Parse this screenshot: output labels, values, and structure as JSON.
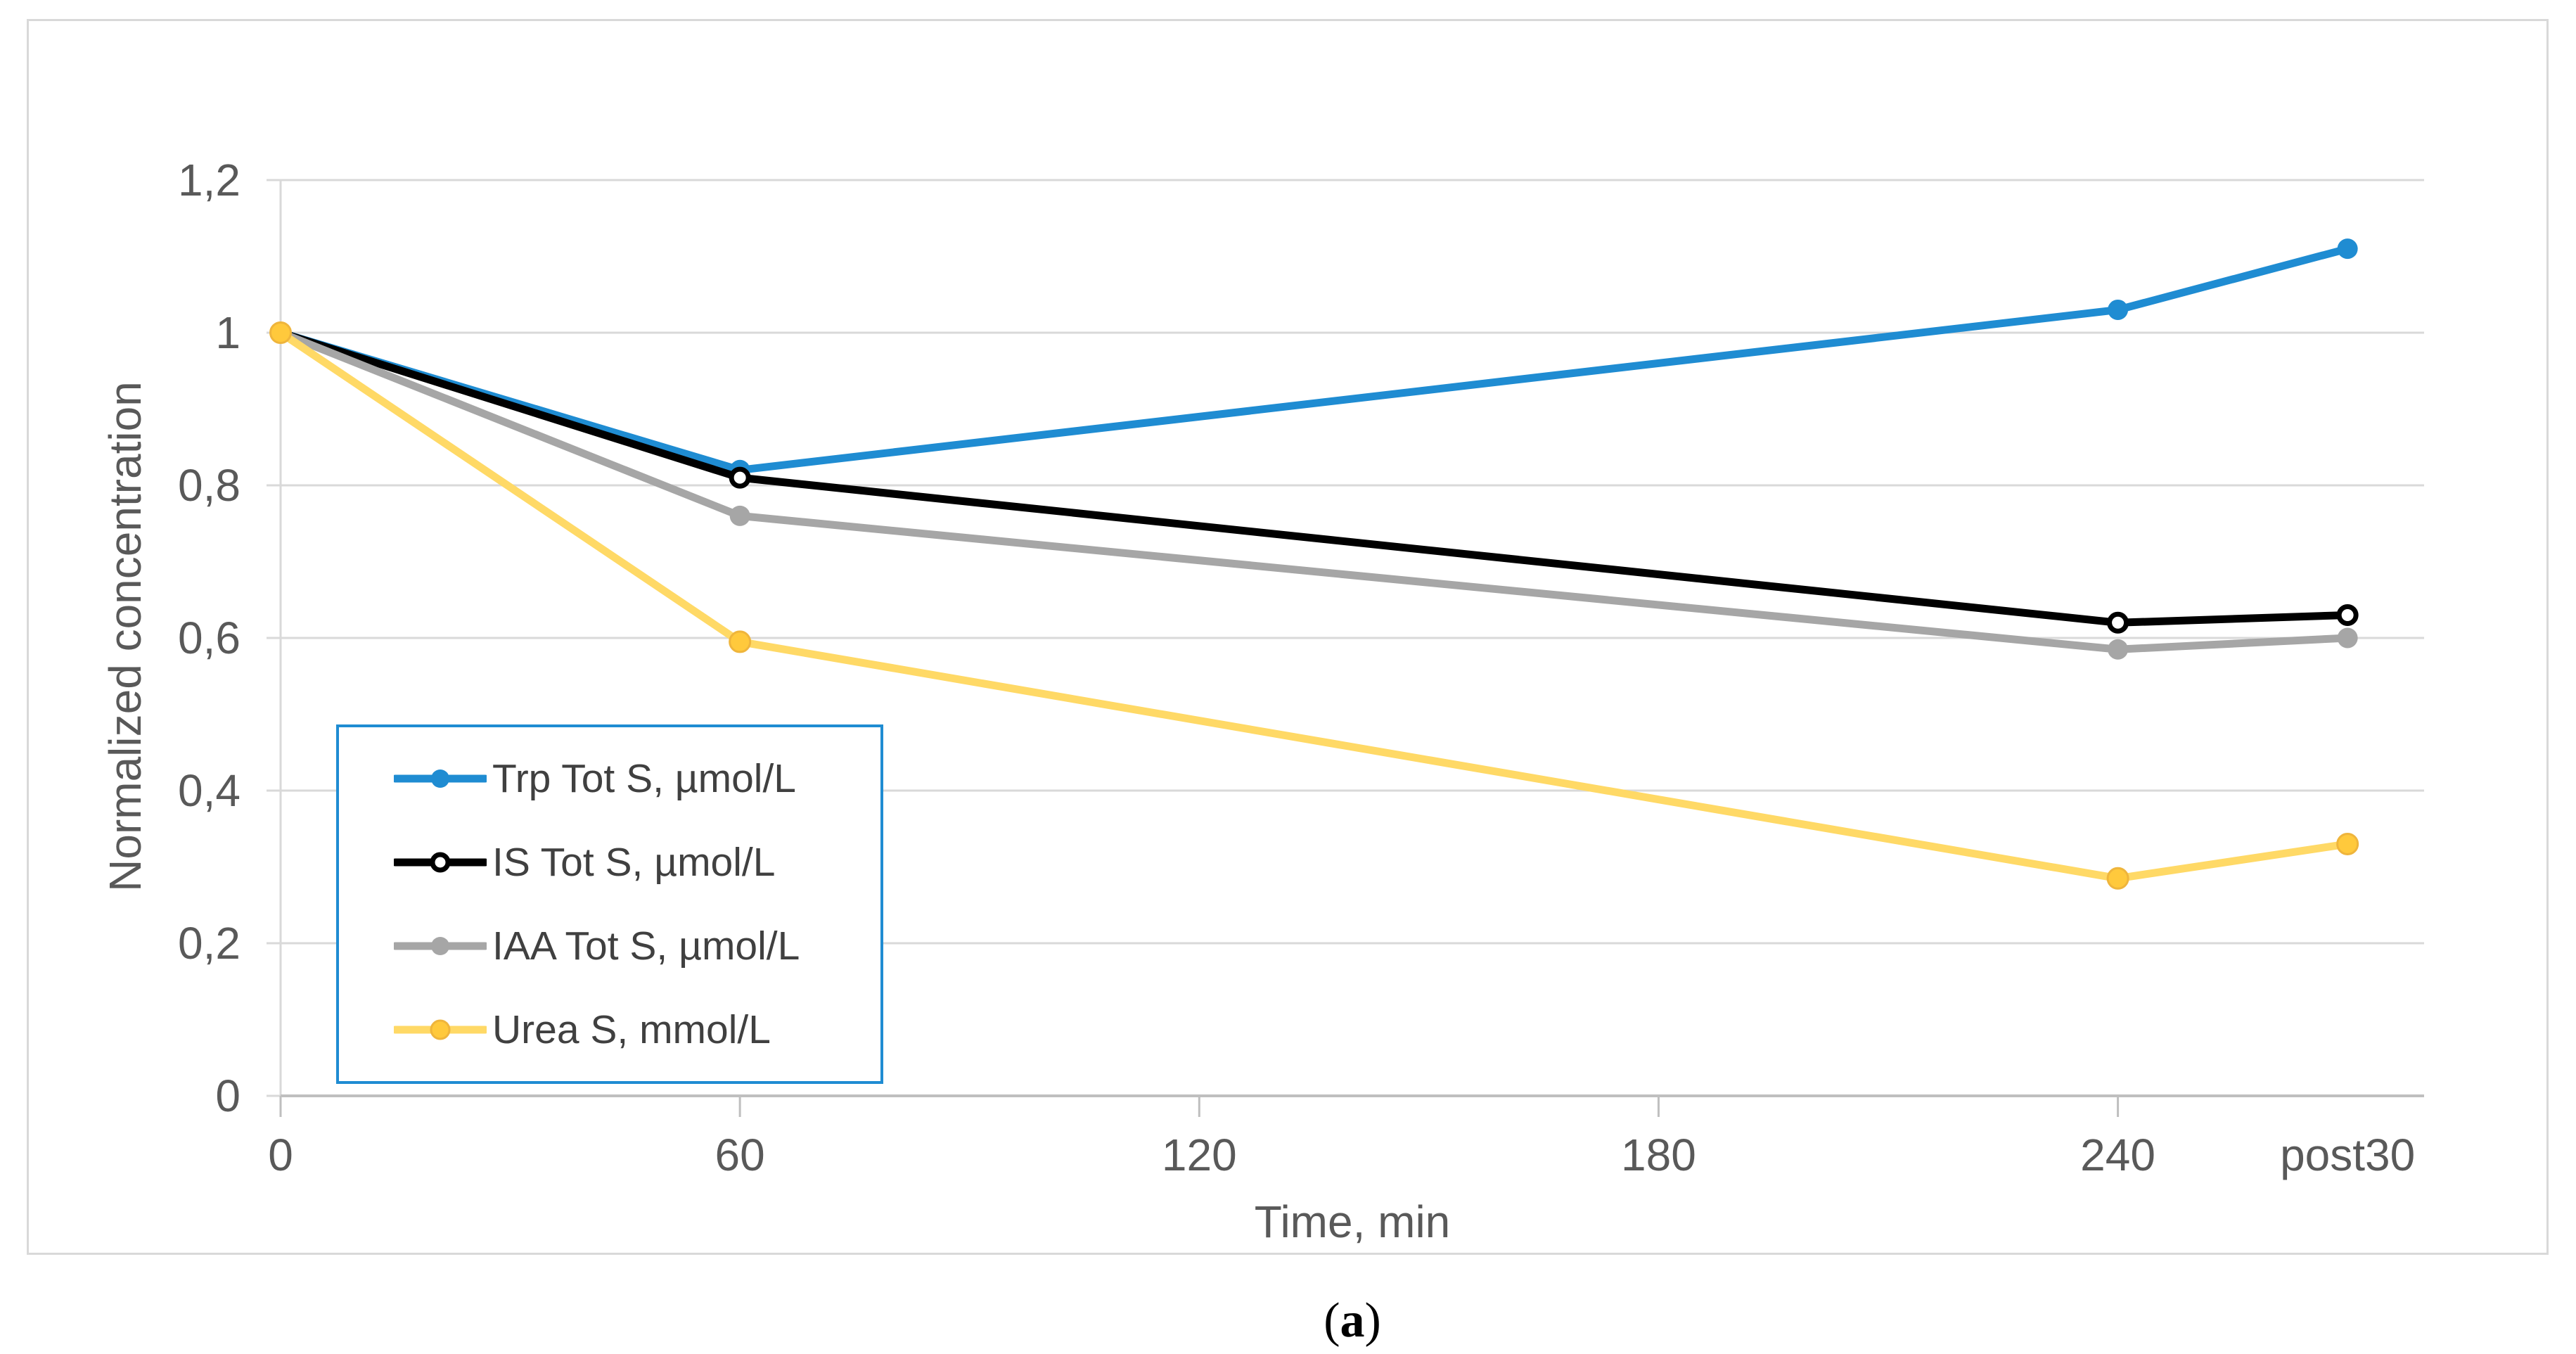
{
  "caption": {
    "open": "(",
    "letter": "a",
    "close": ")"
  },
  "colors": {
    "background": "#ffffff",
    "frame": "#d9d9d9",
    "gridline": "#d9d9d9",
    "axis_line": "#bfbfbf",
    "tick_text": "#595959",
    "legend_text": "#404040",
    "legend_border": "#1f8cd2"
  },
  "chart_data": {
    "type": "line",
    "title": "",
    "xlabel": "Time, min",
    "ylabel": "Normalized concentration",
    "grid": true,
    "legend_position": "inside-left",
    "x_axis": {
      "domain": [
        0,
        280
      ],
      "ticks": [
        {
          "v": 0,
          "label": "0"
        },
        {
          "v": 60,
          "label": "60"
        },
        {
          "v": 120,
          "label": "120"
        },
        {
          "v": 180,
          "label": "180"
        },
        {
          "v": 240,
          "label": "240"
        },
        {
          "v": 270,
          "label": "post30"
        }
      ]
    },
    "y_axis": {
      "domain": [
        0,
        1.2
      ],
      "ticks": [
        {
          "v": 0,
          "label": "0"
        },
        {
          "v": 0.2,
          "label": "0,2"
        },
        {
          "v": 0.4,
          "label": "0,4"
        },
        {
          "v": 0.6,
          "label": "0,6"
        },
        {
          "v": 0.8,
          "label": "0,8"
        },
        {
          "v": 1,
          "label": "1"
        },
        {
          "v": 1.2,
          "label": "1,2"
        }
      ]
    },
    "series": [
      {
        "name": "Trp Tot S, µmol/L",
        "color": "#1f8cd2",
        "line_width": 11,
        "marker": "filled-circle",
        "marker_fill": "#1f8cd2",
        "marker_stroke": "#1f8cd2",
        "marker_stroke_width": 0,
        "points": [
          {
            "x": 0,
            "y": 1.0
          },
          {
            "x": 60,
            "y": 0.82
          },
          {
            "x": 240,
            "y": 1.03
          },
          {
            "x": 270,
            "y": 1.11
          }
        ]
      },
      {
        "name": "IS Tot S, µmol/L",
        "color": "#000000",
        "line_width": 11,
        "marker": "open-circle",
        "marker_fill": "#ffffff",
        "marker_stroke": "#000000",
        "marker_stroke_width": 7,
        "points": [
          {
            "x": 0,
            "y": 1.0
          },
          {
            "x": 60,
            "y": 0.81
          },
          {
            "x": 240,
            "y": 0.62
          },
          {
            "x": 270,
            "y": 0.63
          }
        ]
      },
      {
        "name": "IAA Tot S, µmol/L",
        "color": "#a6a6a6",
        "line_width": 11,
        "marker": "filled-circle",
        "marker_fill": "#a6a6a6",
        "marker_stroke": "#a6a6a6",
        "marker_stroke_width": 0,
        "points": [
          {
            "x": 0,
            "y": 1.0
          },
          {
            "x": 60,
            "y": 0.76
          },
          {
            "x": 240,
            "y": 0.585
          },
          {
            "x": 270,
            "y": 0.6
          }
        ]
      },
      {
        "name": "Urea S, mmol/L",
        "color": "#ffd966",
        "line_width": 11,
        "marker": "filled-circle",
        "marker_fill": "#ffc93c",
        "marker_stroke": "#efb53c",
        "marker_stroke_width": 3,
        "points": [
          {
            "x": 0,
            "y": 1.0
          },
          {
            "x": 60,
            "y": 0.595
          },
          {
            "x": 240,
            "y": 0.285
          },
          {
            "x": 270,
            "y": 0.33
          }
        ]
      }
    ]
  }
}
